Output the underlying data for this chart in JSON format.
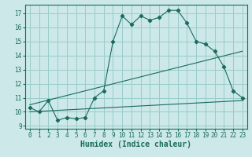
{
  "xlabel": "Humidex (Indice chaleur)",
  "bg_color": "#cce8e8",
  "grid_color": "#99cccc",
  "line_color": "#1a6b5e",
  "xlim": [
    -0.5,
    23.5
  ],
  "ylim": [
    8.8,
    17.6
  ],
  "yticks": [
    9,
    10,
    11,
    12,
    13,
    14,
    15,
    16,
    17
  ],
  "xticks": [
    0,
    1,
    2,
    3,
    4,
    5,
    6,
    7,
    8,
    9,
    10,
    11,
    12,
    13,
    14,
    15,
    16,
    17,
    18,
    19,
    20,
    21,
    22,
    23
  ],
  "main_line": [
    [
      0,
      10.3
    ],
    [
      1,
      10.0
    ],
    [
      2,
      10.8
    ],
    [
      3,
      9.4
    ],
    [
      4,
      9.6
    ],
    [
      5,
      9.5
    ],
    [
      6,
      9.6
    ],
    [
      7,
      11.0
    ],
    [
      8,
      11.5
    ],
    [
      9,
      15.0
    ],
    [
      10,
      16.8
    ],
    [
      11,
      16.2
    ],
    [
      12,
      16.8
    ],
    [
      13,
      16.5
    ],
    [
      14,
      16.7
    ],
    [
      15,
      17.2
    ],
    [
      16,
      17.2
    ],
    [
      17,
      16.3
    ],
    [
      18,
      15.0
    ],
    [
      19,
      14.8
    ],
    [
      20,
      14.3
    ],
    [
      21,
      13.2
    ],
    [
      22,
      11.5
    ],
    [
      23,
      11.0
    ]
  ],
  "lower_line": [
    [
      0,
      10.0
    ],
    [
      23,
      10.8
    ]
  ],
  "upper_line": [
    [
      0,
      10.5
    ],
    [
      23,
      14.3
    ]
  ],
  "marker_style": "D",
  "marker_size": 2.2,
  "linewidth": 0.8,
  "tick_fontsize": 5.5,
  "xlabel_fontsize": 7
}
